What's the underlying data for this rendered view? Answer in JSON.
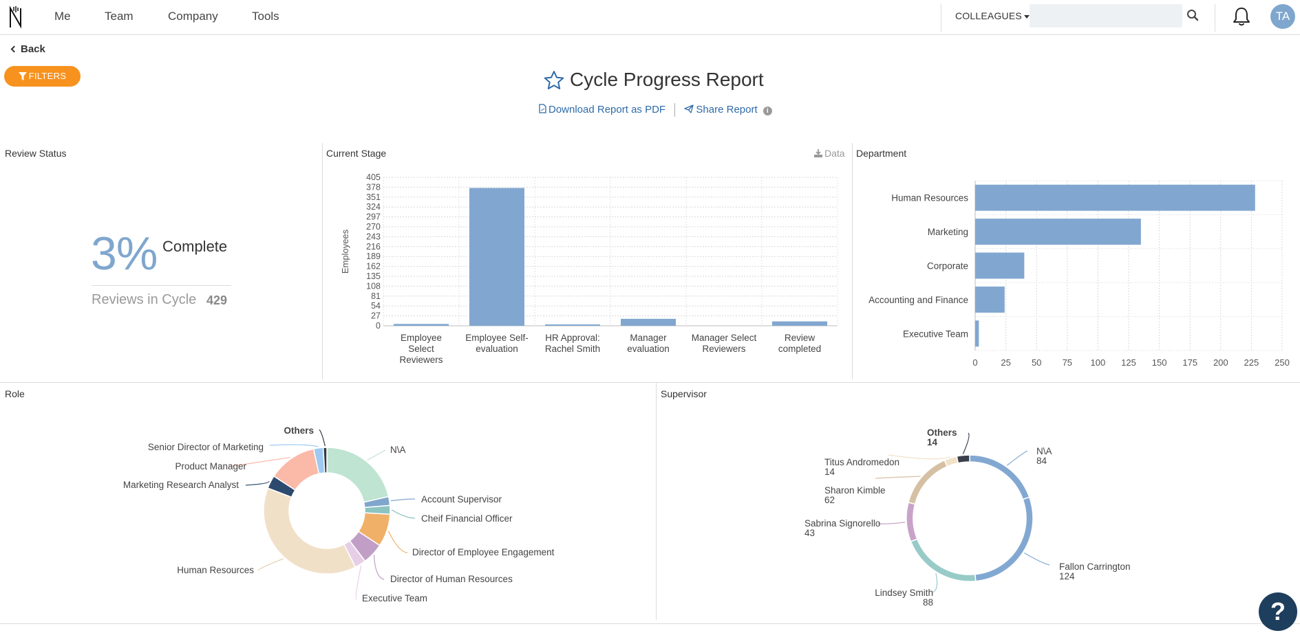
{
  "nav": {
    "items": [
      "Me",
      "Team",
      "Company",
      "Tools"
    ],
    "colleagues_label": "COLLEAGUES",
    "search_placeholder": "",
    "avatar_initials": "TA"
  },
  "back_label": "Back",
  "filters_label": "FILTERS",
  "report": {
    "title": "Cycle Progress Report",
    "download_label": "Download Report as PDF",
    "share_label": "Share Report"
  },
  "review_status": {
    "title": "Review Status",
    "percent": "3%",
    "complete_label": "Complete",
    "cycle_label": "Reviews in Cycle",
    "cycle_count": "429"
  },
  "current_stage": {
    "title": "Current Stage",
    "data_label": "Data"
  },
  "department": {
    "title": "Department"
  },
  "role": {
    "title": "Role"
  },
  "supervisor": {
    "title": "Supervisor"
  },
  "colors": {
    "accent": "#f7921e",
    "bar": "#81a7d0",
    "link": "#2d6aa8",
    "help": "#1e3e5d"
  },
  "chart_data": [
    {
      "id": "current-stage",
      "type": "bar",
      "title": "Current Stage",
      "ylabel": "Employees",
      "xlabel": "",
      "ylim": [
        0,
        405
      ],
      "yticks": [
        0,
        27,
        54,
        81,
        108,
        135,
        162,
        189,
        216,
        243,
        270,
        297,
        324,
        351,
        378,
        405
      ],
      "categories": [
        [
          "Employee",
          "Select",
          "Reviewers"
        ],
        [
          "Employee Self-",
          "evaluation"
        ],
        [
          "HR Approval:",
          "Rachel Smith"
        ],
        [
          "Manager",
          "evaluation"
        ],
        [
          "Manager Select",
          "Reviewers"
        ],
        [
          "Review",
          "completed"
        ]
      ],
      "values": [
        5,
        376,
        2,
        19,
        0,
        12
      ]
    },
    {
      "id": "department",
      "type": "bar",
      "orientation": "horizontal",
      "title": "Department",
      "xlim": [
        0,
        250
      ],
      "xticks": [
        0,
        25,
        50,
        75,
        100,
        125,
        150,
        175,
        200,
        225,
        250
      ],
      "categories": [
        "Human Resources",
        "Marketing",
        "Corporate",
        "Accounting and Finance",
        "Executive Team"
      ],
      "values": [
        228,
        135,
        40,
        24,
        3
      ]
    },
    {
      "id": "role",
      "type": "pie",
      "style": "donut",
      "title": "Role",
      "slices": [
        {
          "label": "N\\A",
          "value": 21,
          "color": "#bfe4d1",
          "bold": false
        },
        {
          "label": "Account Supervisor",
          "value": 2.2,
          "color": "#7fa6cd",
          "bold": false
        },
        {
          "label": "Cheif Financial Officer",
          "value": 2.2,
          "color": "#8cc4c0",
          "bold": false
        },
        {
          "label": "Director of Employee Engagement",
          "value": 8.2,
          "color": "#f0b068",
          "bold": false
        },
        {
          "label": "Director of Human Resources",
          "value": 5.3,
          "color": "#c09ec6",
          "bold": false
        },
        {
          "label": "Executive Team",
          "value": 2.8,
          "color": "#e6cfe6",
          "bold": false
        },
        {
          "label": "Human Resources",
          "value": 37.5,
          "color": "#f1e0c8",
          "bold": false
        },
        {
          "label": "Marketing Research Analyst",
          "value": 3.3,
          "color": "#2c4a6e",
          "bold": false
        },
        {
          "label": "Product Manager",
          "value": 12.2,
          "color": "#fbb9a7",
          "bold": false
        },
        {
          "label": "Senior Director of Marketing",
          "value": 2.4,
          "color": "#9ec9f0",
          "bold": false
        },
        {
          "label": "Others",
          "value": 0.9,
          "color": "#333a45",
          "bold": true
        }
      ]
    },
    {
      "id": "supervisor",
      "type": "pie",
      "style": "ring",
      "title": "Supervisor",
      "slices": [
        {
          "label": "N\\A",
          "count": "84",
          "value": 84,
          "color": "#82a8d2",
          "bold": false
        },
        {
          "label": "Fallon Carrington",
          "count": "124",
          "value": 124,
          "color": "#82a8d2",
          "bold": false
        },
        {
          "label": "Lindsey Smith",
          "count": "88",
          "value": 88,
          "color": "#98cbc7",
          "bold": false
        },
        {
          "label": "Sabrina Signorello",
          "count": "43",
          "value": 43,
          "color": "#c8a3c8",
          "bold": false
        },
        {
          "label": "Sharon Kimble",
          "count": "62",
          "value": 62,
          "color": "#d6c0a3",
          "bold": false
        },
        {
          "label": "Titus Andromedon",
          "count": "14",
          "value": 14,
          "color": "#f2e2c8",
          "bold": false
        },
        {
          "label": "Others",
          "count": "14",
          "value": 14,
          "color": "#3a3f4b",
          "bold": true
        }
      ]
    }
  ]
}
